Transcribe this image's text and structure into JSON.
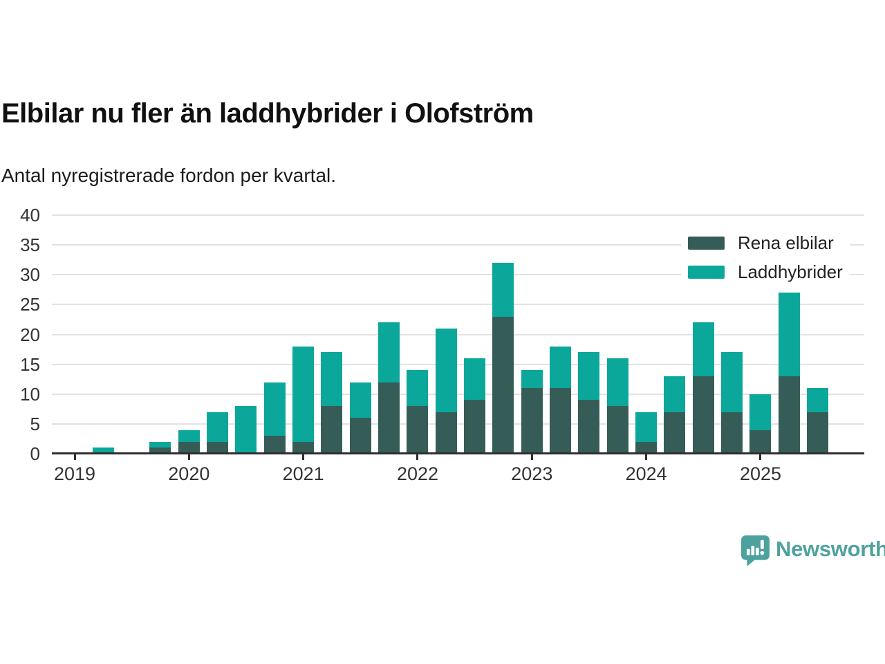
{
  "title": "Elbilar nu fler än laddhybrider i Olofström",
  "subtitle": "Antal nyregistrerade fordon per kvartal.",
  "colors": {
    "elbilar": "#365c57",
    "laddhybrider": "#0ba79a",
    "axis_line": "#2e2e2e",
    "grid": "#e2e2e2",
    "axis_text": "#333333",
    "title_text": "#111111",
    "logo": "#4ea29d"
  },
  "legend": [
    {
      "label": "Rena elbilar"
    },
    {
      "label": "Laddhybrider"
    }
  ],
  "chart_data": {
    "type": "bar",
    "stacked": true,
    "title": "Elbilar nu fler än laddhybrider i Olofström",
    "subtitle": "Antal nyregistrerade fordon per kvartal.",
    "categories": [
      "2019 Q1",
      "2019 Q2",
      "2019 Q3",
      "2019 Q4",
      "2020 Q1",
      "2020 Q2",
      "2020 Q3",
      "2020 Q4",
      "2021 Q1",
      "2021 Q2",
      "2021 Q3",
      "2021 Q4",
      "2022 Q1",
      "2022 Q2",
      "2022 Q3",
      "2022 Q4",
      "2023 Q1",
      "2023 Q2",
      "2023 Q3",
      "2023 Q4",
      "2024 Q1",
      "2024 Q2",
      "2024 Q3",
      "2024 Q4",
      "2025 Q1",
      "2025 Q2",
      "2025 Q3"
    ],
    "series": [
      {
        "name": "Rena elbilar",
        "values": [
          0,
          0,
          0,
          1,
          2,
          2,
          0,
          3,
          2,
          8,
          6,
          12,
          8,
          7,
          9,
          23,
          11,
          11,
          9,
          8,
          2,
          7,
          13,
          7,
          4,
          13,
          7
        ]
      },
      {
        "name": "Laddhybrider",
        "values": [
          0,
          1,
          0,
          1,
          2,
          5,
          8,
          9,
          16,
          9,
          6,
          10,
          6,
          14,
          7,
          9,
          3,
          7,
          8,
          8,
          5,
          6,
          9,
          10,
          6,
          14,
          4
        ]
      }
    ],
    "totals": [
      0,
      1,
      0,
      2,
      4,
      7,
      8,
      12,
      18,
      17,
      12,
      22,
      14,
      21,
      16,
      32,
      14,
      18,
      17,
      16,
      7,
      13,
      22,
      17,
      10,
      27,
      11
    ],
    "x_tick_labels": [
      "2019",
      "2020",
      "2021",
      "2022",
      "2023",
      "2024",
      "2025"
    ],
    "yticks": [
      0,
      5,
      10,
      15,
      20,
      25,
      30,
      35,
      40
    ],
    "ylim": [
      0,
      40
    ],
    "grid": true,
    "legend_position": "top-right"
  },
  "footer": {
    "brand": "Newsworthy"
  }
}
